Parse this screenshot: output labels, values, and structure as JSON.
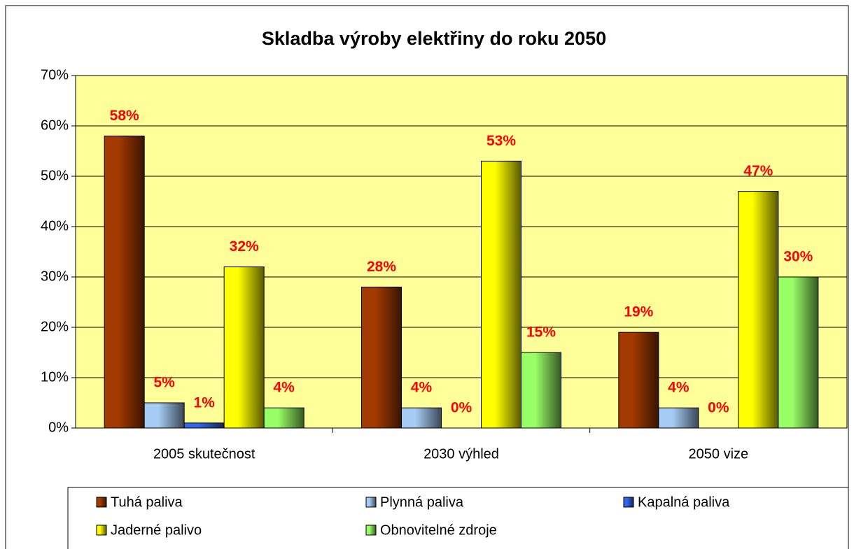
{
  "chart_data": {
    "type": "bar",
    "title": "Skladba výroby elektřiny do roku 2050",
    "categories": [
      "2005 skutečnost",
      "2030 výhled",
      "2050 vize"
    ],
    "series": [
      {
        "name": "Tuhá paliva",
        "color": "#a33a00",
        "values": [
          58,
          28,
          19
        ],
        "value_labels": [
          "58%",
          "28%",
          "19%"
        ]
      },
      {
        "name": "Plynná paliva",
        "color": "#a6ccf5",
        "values": [
          5,
          4,
          4
        ],
        "value_labels": [
          "5%",
          "4%",
          "4%"
        ]
      },
      {
        "name": "Kapalná paliva",
        "color": "#3366ee",
        "values": [
          1,
          0,
          0
        ],
        "value_labels": [
          "1%",
          "0%",
          "0%"
        ]
      },
      {
        "name": "Jaderné palivo",
        "color": "#ffff00",
        "values": [
          32,
          53,
          47
        ],
        "value_labels": [
          "32%",
          "53%",
          "47%"
        ]
      },
      {
        "name": "Obnovitelné zdroje",
        "color": "#99ff66",
        "values": [
          4,
          15,
          30
        ],
        "value_labels": [
          "4%",
          "15%",
          "30%"
        ]
      }
    ],
    "ylim": [
      0,
      70
    ],
    "yticks": [
      {
        "value": 0,
        "label": "0%"
      },
      {
        "value": 10,
        "label": "10%"
      },
      {
        "value": 20,
        "label": "20%"
      },
      {
        "value": 30,
        "label": "30%"
      },
      {
        "value": 40,
        "label": "40%"
      },
      {
        "value": 50,
        "label": "50%"
      },
      {
        "value": 60,
        "label": "60%"
      },
      {
        "value": 70,
        "label": "70%"
      }
    ],
    "grid": true,
    "legend": "bottom"
  }
}
